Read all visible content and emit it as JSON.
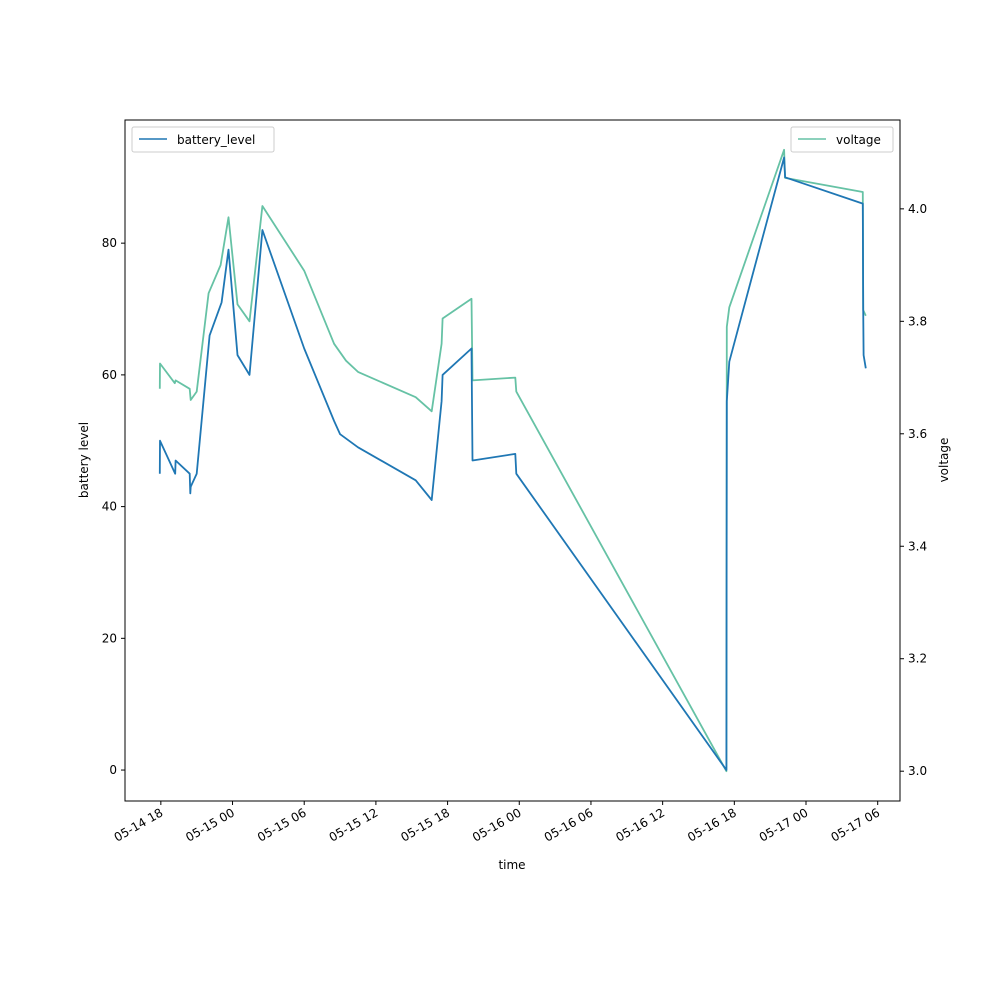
{
  "chart_data": {
    "type": "line",
    "xlabel": "time",
    "ylabel": "battery level",
    "y2label": "voltage",
    "x_ticks": [
      "05-14 18",
      "05-15 00",
      "05-15 06",
      "05-15 12",
      "05-15 18",
      "05-16 00",
      "05-16 06",
      "05-16 12",
      "05-16 18",
      "05-17 00",
      "05-17 06"
    ],
    "xlim": [
      "2024-05-14 15:00",
      "2024-05-17 07:52"
    ],
    "ylim": [
      -4.7,
      98.7
    ],
    "y_ticks": [
      0,
      20,
      40,
      60,
      80
    ],
    "y2lim": [
      2.947,
      4.158
    ],
    "y2_ticks": [
      "3.0",
      "3.2",
      "3.4",
      "3.6",
      "3.8",
      "4.0"
    ],
    "legend_left": {
      "placement": "upper-left",
      "label": "battery_level"
    },
    "legend_right": {
      "placement": "upper-right",
      "label": "voltage"
    },
    "colors": {
      "battery_level": "#1f77b4",
      "voltage": "#66c2a5"
    },
    "series": [
      {
        "name": "battery_level",
        "axis": "left",
        "points": [
          [
            "2024-05-14 17:55",
            45
          ],
          [
            "2024-05-14 17:56",
            50
          ],
          [
            "2024-05-14 19:12",
            45
          ],
          [
            "2024-05-14 19:14",
            47
          ],
          [
            "2024-05-14 20:25",
            45
          ],
          [
            "2024-05-14 20:28",
            42
          ],
          [
            "2024-05-14 20:30",
            43
          ],
          [
            "2024-05-14 21:00",
            45
          ],
          [
            "2024-05-14 22:05",
            66
          ],
          [
            "2024-05-14 23:05",
            71
          ],
          [
            "2024-05-14 23:40",
            79
          ],
          [
            "2024-05-15 00:25",
            63
          ],
          [
            "2024-05-15 01:25",
            60
          ],
          [
            "2024-05-15 02:30",
            82
          ],
          [
            "2024-05-15 06:00",
            64
          ],
          [
            "2024-05-15 08:30",
            53
          ],
          [
            "2024-05-15 09:00",
            51
          ],
          [
            "2024-05-15 10:30",
            49
          ],
          [
            "2024-05-15 15:20",
            44
          ],
          [
            "2024-05-15 16:40",
            41
          ],
          [
            "2024-05-15 17:30",
            56
          ],
          [
            "2024-05-15 17:35",
            60
          ],
          [
            "2024-05-15 20:00",
            64
          ],
          [
            "2024-05-15 20:05",
            47
          ],
          [
            "2024-05-15 23:40",
            48
          ],
          [
            "2024-05-15 23:45",
            45
          ],
          [
            "2024-05-16 17:20",
            0
          ],
          [
            "2024-05-16 17:22",
            56
          ],
          [
            "2024-05-16 17:35",
            62
          ],
          [
            "2024-05-16 19:30",
            75
          ],
          [
            "2024-05-16 22:10",
            93
          ],
          [
            "2024-05-16 22:15",
            90
          ],
          [
            "2024-05-17 04:45",
            86
          ],
          [
            "2024-05-17 04:47",
            70
          ],
          [
            "2024-05-17 04:49",
            63
          ],
          [
            "2024-05-17 05:00",
            61
          ]
        ]
      },
      {
        "name": "voltage",
        "axis": "right",
        "points": [
          [
            "2024-05-14 17:55",
            3.68
          ],
          [
            "2024-05-14 17:56",
            3.725
          ],
          [
            "2024-05-14 19:10",
            3.69
          ],
          [
            "2024-05-14 19:14",
            3.695
          ],
          [
            "2024-05-14 20:25",
            3.68
          ],
          [
            "2024-05-14 20:30",
            3.66
          ],
          [
            "2024-05-14 21:00",
            3.675
          ],
          [
            "2024-05-14 22:00",
            3.85
          ],
          [
            "2024-05-14 23:00",
            3.9
          ],
          [
            "2024-05-14 23:40",
            3.985
          ],
          [
            "2024-05-15 00:25",
            3.83
          ],
          [
            "2024-05-15 01:25",
            3.8
          ],
          [
            "2024-05-15 02:30",
            4.005
          ],
          [
            "2024-05-15 06:00",
            3.89
          ],
          [
            "2024-05-15 08:30",
            3.76
          ],
          [
            "2024-05-15 09:30",
            3.73
          ],
          [
            "2024-05-15 10:30",
            3.71
          ],
          [
            "2024-05-15 15:20",
            3.665
          ],
          [
            "2024-05-15 16:40",
            3.64
          ],
          [
            "2024-05-15 17:30",
            3.76
          ],
          [
            "2024-05-15 17:35",
            3.805
          ],
          [
            "2024-05-15 20:00",
            3.84
          ],
          [
            "2024-05-15 20:05",
            3.695
          ],
          [
            "2024-05-15 23:40",
            3.7
          ],
          [
            "2024-05-15 23:45",
            3.675
          ],
          [
            "2024-05-16 17:20",
            3.0
          ],
          [
            "2024-05-16 17:22",
            3.79
          ],
          [
            "2024-05-16 17:35",
            3.825
          ],
          [
            "2024-05-16 22:10",
            4.105
          ],
          [
            "2024-05-16 22:15",
            4.055
          ],
          [
            "2024-05-17 04:45",
            4.03
          ],
          [
            "2024-05-17 04:47",
            3.82
          ],
          [
            "2024-05-17 05:00",
            3.81
          ]
        ]
      }
    ]
  }
}
